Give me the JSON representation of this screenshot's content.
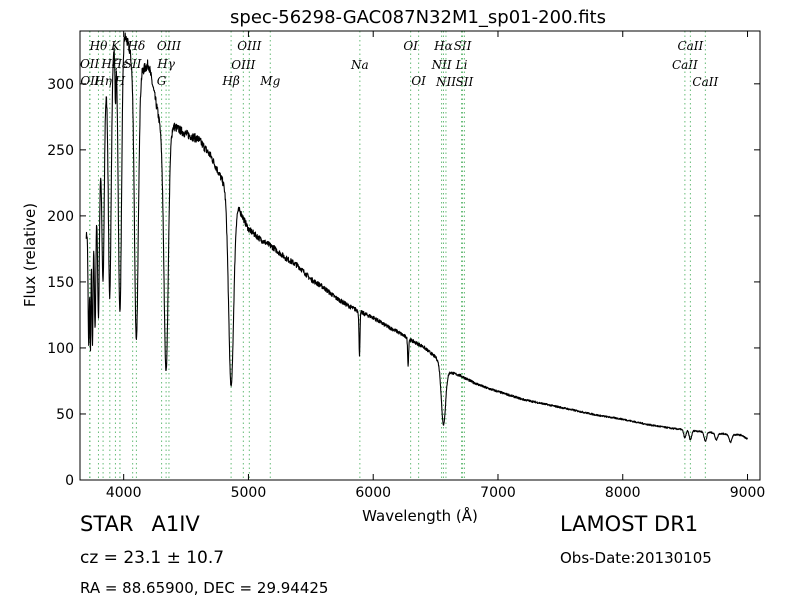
{
  "chart_data": {
    "type": "line",
    "title": "spec-56298-GAC087N32M1_sp01-200.fits",
    "xlabel": "Wavelength (Å)",
    "ylabel": "Flux (relative)",
    "xlim": [
      3650,
      9100
    ],
    "ylim": [
      0,
      340
    ],
    "xticks": [
      4000,
      5000,
      6000,
      7000,
      8000,
      9000
    ],
    "yticks": [
      0,
      50,
      100,
      150,
      200,
      250,
      300
    ],
    "grid": false,
    "legend": "none",
    "colors": {
      "spectrum": "#000000",
      "line_markers": "#66bb77"
    },
    "continuum": [
      [
        3700,
        185
      ],
      [
        3760,
        205
      ],
      [
        3800,
        225
      ],
      [
        3850,
        290
      ],
      [
        3900,
        320
      ],
      [
        3950,
        335
      ],
      [
        4000,
        340
      ],
      [
        4050,
        325
      ],
      [
        4100,
        300
      ],
      [
        4150,
        310
      ],
      [
        4200,
        315
      ],
      [
        4250,
        290
      ],
      [
        4300,
        265
      ],
      [
        4350,
        262
      ],
      [
        4400,
        268
      ],
      [
        4500,
        262
      ],
      [
        4600,
        258
      ],
      [
        4700,
        245
      ],
      [
        4800,
        225
      ],
      [
        4900,
        210
      ],
      [
        5000,
        190
      ],
      [
        5100,
        182
      ],
      [
        5200,
        176
      ],
      [
        5300,
        168
      ],
      [
        5400,
        162
      ],
      [
        5500,
        152
      ],
      [
        5600,
        146
      ],
      [
        5700,
        138
      ],
      [
        5800,
        132
      ],
      [
        5900,
        127
      ],
      [
        6000,
        123
      ],
      [
        6100,
        117
      ],
      [
        6200,
        112
      ],
      [
        6300,
        106
      ],
      [
        6400,
        101
      ],
      [
        6500,
        93
      ],
      [
        6600,
        82
      ],
      [
        6700,
        79
      ],
      [
        6800,
        74
      ],
      [
        6900,
        70
      ],
      [
        7000,
        67
      ],
      [
        7200,
        61
      ],
      [
        7400,
        57
      ],
      [
        7600,
        53
      ],
      [
        7800,
        49
      ],
      [
        8000,
        46
      ],
      [
        8200,
        42
      ],
      [
        8400,
        39
      ],
      [
        8600,
        37
      ],
      [
        8800,
        35
      ],
      [
        8950,
        34
      ],
      [
        9000,
        31
      ]
    ],
    "absorption_lines": [
      {
        "wave": 3720,
        "depth": 90,
        "width": 5
      },
      {
        "wave": 3734,
        "depth": 95,
        "width": 4
      },
      {
        "wave": 3750,
        "depth": 100,
        "width": 5
      },
      {
        "wave": 3771,
        "depth": 95,
        "width": 6
      },
      {
        "wave": 3798,
        "depth": 100,
        "width": 7
      },
      {
        "wave": 3835,
        "depth": 120,
        "width": 9
      },
      {
        "wave": 3889,
        "depth": 175,
        "width": 11
      },
      {
        "wave": 3934,
        "depth": 40,
        "width": 4
      },
      {
        "wave": 3970,
        "depth": 210,
        "width": 13
      },
      {
        "wave": 4102,
        "depth": 195,
        "width": 15
      },
      {
        "wave": 4340,
        "depth": 180,
        "width": 17
      },
      {
        "wave": 4861,
        "depth": 145,
        "width": 20
      },
      {
        "wave": 5890,
        "depth": 33,
        "width": 4
      },
      {
        "wave": 6280,
        "depth": 20,
        "width": 4
      },
      {
        "wave": 6563,
        "depth": 44,
        "width": 17
      },
      {
        "wave": 8498,
        "depth": 6,
        "width": 9
      },
      {
        "wave": 8542,
        "depth": 7,
        "width": 10
      },
      {
        "wave": 8662,
        "depth": 7,
        "width": 10
      },
      {
        "wave": 8750,
        "depth": 5,
        "width": 10
      },
      {
        "wave": 8863,
        "depth": 6,
        "width": 11
      }
    ],
    "line_markers": [
      {
        "wave": 3727,
        "label": "OII",
        "row": 2
      },
      {
        "wave": 3730,
        "label": "OII",
        "row": 3
      },
      {
        "wave": 3798,
        "label": "Hθ",
        "row": 1
      },
      {
        "wave": 3835,
        "label": "Hη",
        "row": 3
      },
      {
        "wave": 3889,
        "label": "Hζ",
        "row": 2
      },
      {
        "wave": 3934,
        "label": "K",
        "row": 1
      },
      {
        "wave": 3970,
        "label": "H",
        "row": 3
      },
      {
        "wave": 3970,
        "label": "Hε",
        "row": 2
      },
      {
        "wave": 4072,
        "label": "SII",
        "row": 2
      },
      {
        "wave": 4102,
        "label": "Hδ",
        "row": 1
      },
      {
        "wave": 4304,
        "label": "G",
        "row": 3
      },
      {
        "wave": 4340,
        "label": "Hγ",
        "row": 2
      },
      {
        "wave": 4363,
        "label": "OIII",
        "row": 1
      },
      {
        "wave": 4861,
        "label": "Hβ",
        "row": 3
      },
      {
        "wave": 4959,
        "label": "OIII",
        "row": 4
      },
      {
        "wave": 5007,
        "label": "OIII",
        "row": 1
      },
      {
        "wave": 5175,
        "label": "Mg",
        "row": 3
      },
      {
        "wave": 5893,
        "label": "Na",
        "row": 4
      },
      {
        "wave": 6300,
        "label": "OI",
        "row": 1
      },
      {
        "wave": 6364,
        "label": "OI",
        "row": 3
      },
      {
        "wave": 6548,
        "label": "NII",
        "row": 4
      },
      {
        "wave": 6563,
        "label": "Hα",
        "row": 1
      },
      {
        "wave": 6583,
        "label": "NII",
        "row": 5
      },
      {
        "wave": 6708,
        "label": "Li",
        "row": 4
      },
      {
        "wave": 6716,
        "label": "SII",
        "row": 1
      },
      {
        "wave": 6731,
        "label": "SII",
        "row": 5
      },
      {
        "wave": 8498,
        "label": "CaII",
        "row": 4
      },
      {
        "wave": 8542,
        "label": "CaII",
        "row": 1
      },
      {
        "wave": 8662,
        "label": "CaII",
        "row": 5
      }
    ]
  },
  "info": {
    "object_type": "STAR",
    "subclass": "A1IV",
    "cz": "cz = 23.1 ± 10.7",
    "radec": "RA = 88.65900, DEC = 29.94425",
    "survey": "LAMOST DR1",
    "obs_date": "Obs-Date:20130105"
  }
}
